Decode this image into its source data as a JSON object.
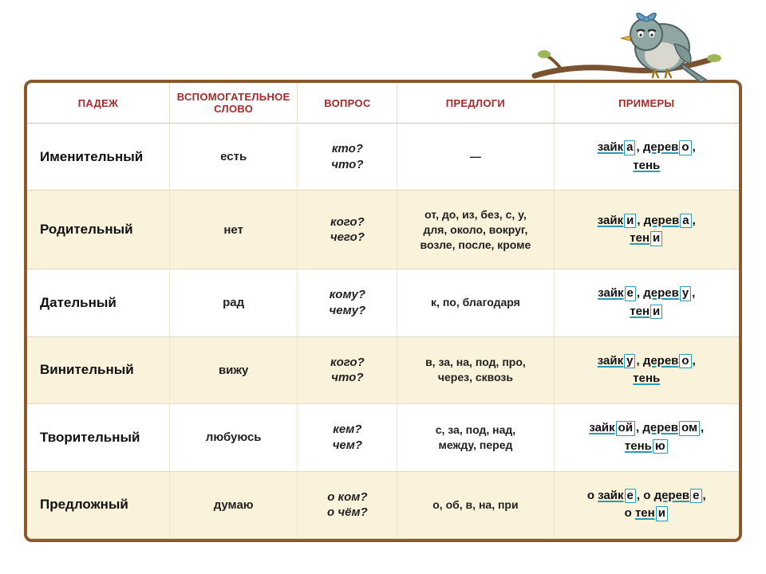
{
  "decor": {
    "branch_color": "#7a5230",
    "bird_body": "#8fa6a3",
    "bird_belly": "#d8d8d0",
    "bird_beak": "#e8b74a",
    "bow_color": "#6aa0c4"
  },
  "frame": {
    "border_color": "#8a5a2c",
    "border_width": 4,
    "border_radius": 10
  },
  "table": {
    "header_bg": "#ffffff",
    "header_text_color": "#a52a2a",
    "row_alt_bg": "#faf2db",
    "row_plain_bg": "#ffffff",
    "border_color": "#e2d9c2",
    "ending_box_border": "#2a9ab7",
    "col_widths_pct": [
      20,
      18,
      14,
      22,
      26
    ],
    "headers": [
      "ПАДЕЖ",
      "ВСПОМОГАТЕЛЬНОЕ СЛОВО",
      "ВОПРОС",
      "ПРЕДЛОГИ",
      "ПРИМЕРЫ"
    ],
    "rows": [
      {
        "bg": "plain",
        "case": "Именительный",
        "helper": "есть",
        "question": "кто?<br>что?",
        "prepos": "—",
        "examples": "<span class='ul'>зайк</span><span class='ending'>а</span>, <span class='ul'>дерев</span><span class='ending'>о</span>,<br><span class='ul'>тень</span>"
      },
      {
        "bg": "alt",
        "case": "Родительный",
        "helper": "нет",
        "question": "кого?<br>чего?",
        "prepos": "от, до, из, без, с, у,<br>для, около, вокруг,<br>возле, после, кроме",
        "examples": "<span class='ul'>зайк</span><span class='ending'>и</span>, <span class='ul'>дерев</span><span class='ending'>а</span>,<br><span class='ul'>тен</span><span class='ending'>и</span>"
      },
      {
        "bg": "plain",
        "case": "Дательный",
        "helper": "рад",
        "question": "кому?<br>чему?",
        "prepos": "к, по, благодаря",
        "examples": "<span class='ul'>зайк</span><span class='ending'>е</span>, <span class='ul'>дерев</span><span class='ending'>у</span>,<br><span class='ul'>тен</span><span class='ending'>и</span>"
      },
      {
        "bg": "alt",
        "case": "Винительный",
        "helper": "вижу",
        "question": "кого?<br>что?",
        "prepos": "в, за, на, под, про,<br>через, сквозь",
        "examples": "<span class='ul'>зайк</span><span class='ending'>у</span>, <span class='ul'>дерев</span><span class='ending'>о</span>,<br><span class='ul'>тень</span>"
      },
      {
        "bg": "plain",
        "case": "Творительный",
        "helper": "любуюсь",
        "question": "кем?<br>чем?",
        "prepos": "с, за, под, над,<br>между, перед",
        "examples": "<span class='ul'>зайк</span><span class='ending'>ой</span>, <span class='ul'>дерев</span><span class='ending'>ом</span>,<br><span class='ul'>тень</span><span class='ending'>ю</span>"
      },
      {
        "bg": "alt",
        "case": "Предложный",
        "helper": "думаю",
        "question": "о ком?<br>о чём?",
        "prepos": "о, об, в, на, при",
        "examples": "о <span class='ul'>зайк</span><span class='ending'>е</span>, о <span class='ul'>дерев</span><span class='ending'>е</span>,<br>о <span class='ul'>тен</span><span class='ending'>и</span>"
      }
    ]
  }
}
